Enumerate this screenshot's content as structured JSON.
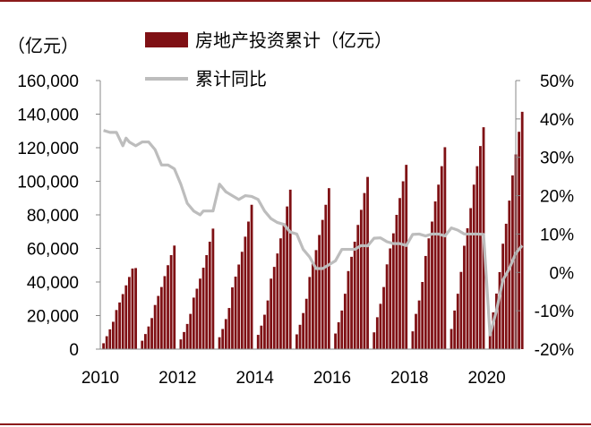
{
  "chart_data": {
    "type": "bar",
    "unit_label": "（亿元）",
    "legend": {
      "bar": "房地产投资累计（亿元）",
      "line": "累计同比"
    },
    "colors": {
      "bar": "#7f1014",
      "line": "#bdbdbd",
      "rule": "#8b1a1a"
    },
    "left_axis": {
      "min": 0,
      "max": 160000,
      "ticks": [
        "0",
        "20,000",
        "40,000",
        "60,000",
        "80,000",
        "100,000",
        "120,000",
        "140,000",
        "160,000"
      ]
    },
    "right_axis": {
      "min": -20,
      "max": 50,
      "ticks": [
        "-20%",
        "-10%",
        "0%",
        "10%",
        "20%",
        "30%",
        "40%",
        "50%"
      ]
    },
    "x_axis": {
      "ticks": [
        "2010",
        "2012",
        "2014",
        "2016",
        "2018",
        "2020"
      ]
    },
    "series": [
      {
        "name": "房地产投资累计（亿元）",
        "kind": "bar",
        "x": [
          "2010-02",
          "2010-03",
          "2010-04",
          "2010-05",
          "2010-06",
          "2010-07",
          "2010-08",
          "2010-09",
          "2010-10",
          "2010-11",
          "2010-12",
          "2011-02",
          "2011-03",
          "2011-04",
          "2011-05",
          "2011-06",
          "2011-07",
          "2011-08",
          "2011-09",
          "2011-10",
          "2011-11",
          "2011-12",
          "2012-02",
          "2012-03",
          "2012-04",
          "2012-05",
          "2012-06",
          "2012-07",
          "2012-08",
          "2012-09",
          "2012-10",
          "2012-11",
          "2012-12",
          "2013-02",
          "2013-03",
          "2013-04",
          "2013-05",
          "2013-06",
          "2013-07",
          "2013-08",
          "2013-09",
          "2013-10",
          "2013-11",
          "2013-12",
          "2014-02",
          "2014-03",
          "2014-04",
          "2014-05",
          "2014-06",
          "2014-07",
          "2014-08",
          "2014-09",
          "2014-10",
          "2014-11",
          "2014-12",
          "2015-02",
          "2015-03",
          "2015-04",
          "2015-05",
          "2015-06",
          "2015-07",
          "2015-08",
          "2015-09",
          "2015-10",
          "2015-11",
          "2015-12",
          "2016-02",
          "2016-03",
          "2016-04",
          "2016-05",
          "2016-06",
          "2016-07",
          "2016-08",
          "2016-09",
          "2016-10",
          "2016-11",
          "2016-12",
          "2017-02",
          "2017-03",
          "2017-04",
          "2017-05",
          "2017-06",
          "2017-07",
          "2017-08",
          "2017-09",
          "2017-10",
          "2017-11",
          "2017-12",
          "2018-02",
          "2018-03",
          "2018-04",
          "2018-05",
          "2018-06",
          "2018-07",
          "2018-08",
          "2018-09",
          "2018-10",
          "2018-11",
          "2018-12",
          "2019-02",
          "2019-03",
          "2019-04",
          "2019-05",
          "2019-06",
          "2019-07",
          "2019-08",
          "2019-09",
          "2019-10",
          "2019-11",
          "2019-12",
          "2020-02",
          "2020-03",
          "2020-04",
          "2020-05",
          "2020-06",
          "2020-07",
          "2020-08",
          "2020-09",
          "2020-10",
          "2020-11",
          "2020-12"
        ],
        "values": [
          3500,
          7700,
          11800,
          16300,
          23300,
          27800,
          32800,
          38000,
          43000,
          48000,
          48300,
          5000,
          9000,
          13500,
          18500,
          26300,
          31700,
          37000,
          43500,
          50000,
          56000,
          61700,
          5800,
          10200,
          15000,
          21000,
          30700,
          36000,
          42000,
          48500,
          56000,
          64000,
          71800,
          7100,
          12000,
          17900,
          24500,
          36800,
          43200,
          50400,
          58000,
          67000,
          76000,
          86000,
          8500,
          14000,
          20500,
          29000,
          42000,
          49000,
          57000,
          66000,
          75000,
          85000,
          95000,
          8800,
          14500,
          21500,
          30000,
          43000,
          51000,
          59000,
          68000,
          77000,
          86000,
          95900,
          9300,
          16000,
          23000,
          33000,
          46500,
          55000,
          64000,
          74000,
          83000,
          93000,
          102600,
          10000,
          19000,
          27000,
          37000,
          50500,
          60000,
          69000,
          80000,
          90000,
          100000,
          109800,
          10600,
          21000,
          29000,
          40000,
          55500,
          66000,
          76000,
          88000,
          98000,
          109000,
          120300,
          12000,
          23000,
          33000,
          46000,
          61600,
          72000,
          84000,
          98000,
          109000,
          121000,
          132200,
          10100,
          21900,
          33100,
          45900,
          62800,
          74700,
          88500,
          103500,
          116000,
          129500,
          141400
        ]
      },
      {
        "name": "累计同比",
        "kind": "line",
        "x": [
          "2010-02",
          "2010-04",
          "2010-06",
          "2010-08",
          "2010-09",
          "2010-10",
          "2010-12",
          "2011-02",
          "2011-04",
          "2011-06",
          "2011-08",
          "2011-10",
          "2011-12",
          "2012-02",
          "2012-04",
          "2012-06",
          "2012-08",
          "2012-09",
          "2012-10",
          "2012-12",
          "2013-02",
          "2013-04",
          "2013-06",
          "2013-08",
          "2013-10",
          "2013-12",
          "2014-02",
          "2014-04",
          "2014-06",
          "2014-08",
          "2014-10",
          "2014-12",
          "2015-02",
          "2015-04",
          "2015-06",
          "2015-08",
          "2015-10",
          "2015-12",
          "2016-02",
          "2016-04",
          "2016-06",
          "2016-08",
          "2016-10",
          "2016-12",
          "2017-02",
          "2017-04",
          "2017-06",
          "2017-08",
          "2017-10",
          "2017-12",
          "2018-02",
          "2018-04",
          "2018-06",
          "2018-08",
          "2018-10",
          "2018-12",
          "2019-02",
          "2019-04",
          "2019-06",
          "2019-08",
          "2019-10",
          "2019-12",
          "2020-02",
          "2020-04",
          "2020-06",
          "2020-08",
          "2020-10",
          "2020-12"
        ],
        "values": [
          37,
          36.5,
          36.5,
          33,
          35,
          34,
          33,
          34,
          34,
          32,
          28,
          28,
          27,
          23,
          18,
          16,
          15,
          16,
          16,
          16,
          23,
          21,
          20,
          19,
          20,
          19.8,
          19,
          16,
          14,
          13,
          12.5,
          10.5,
          10,
          6,
          4,
          1,
          1,
          2,
          3,
          6,
          6,
          6,
          7,
          6.9,
          8.9,
          9,
          8,
          7.5,
          7.5,
          7,
          9.9,
          10,
          9.5,
          10,
          10,
          9.5,
          11.6,
          11,
          10,
          10,
          10,
          9.9,
          -16.3,
          -10,
          -2,
          1,
          5,
          7
        ]
      }
    ]
  }
}
